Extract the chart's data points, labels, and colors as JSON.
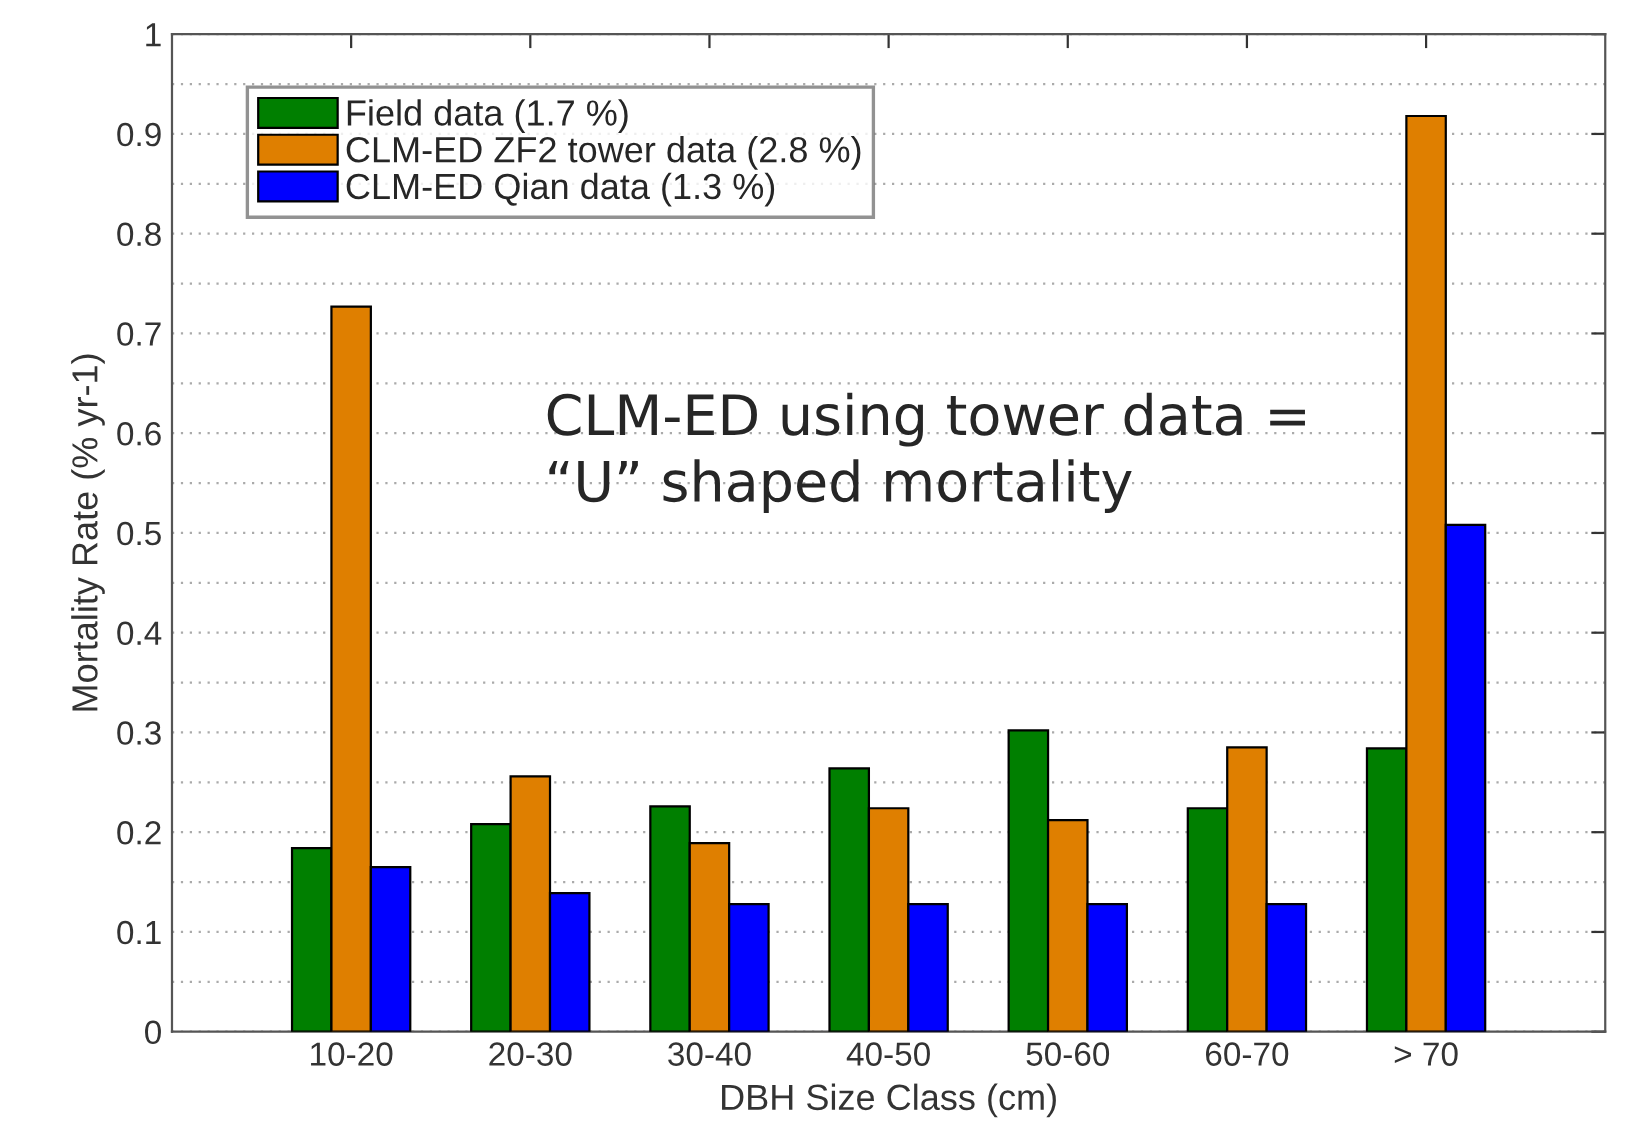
{
  "chart_data": {
    "type": "bar",
    "xlabel": "DBH Size Class (cm)",
    "ylabel": "Mortality Rate (% yr-1)",
    "categories": [
      "10-20",
      "20-30",
      "30-40",
      "40-50",
      "50-60",
      "60-70",
      "> 70"
    ],
    "series": [
      {
        "name": "Field data (1.7 %)",
        "color": "#007f00",
        "values": [
          0.184,
          0.208,
          0.226,
          0.264,
          0.302,
          0.224,
          0.284
        ]
      },
      {
        "name": "CLM-ED ZF2 tower data (2.8 %)",
        "color": "#df7f00",
        "values": [
          0.727,
          0.256,
          0.189,
          0.224,
          0.212,
          0.285,
          0.918
        ]
      },
      {
        "name": "CLM-ED Qian data (1.3 %)",
        "color": "#0000ff",
        "values": [
          0.165,
          0.139,
          0.128,
          0.128,
          0.128,
          0.128,
          0.508
        ]
      }
    ],
    "ylim": [
      0,
      1
    ],
    "yticks": [
      0,
      0.1,
      0.2,
      0.3,
      0.4,
      0.5,
      0.6,
      0.7,
      0.8,
      0.9,
      1
    ],
    "grid": "y",
    "legend": "top left",
    "annotations": [
      "CLM-ED using tower data =\n“U” shaped mortality"
    ]
  }
}
